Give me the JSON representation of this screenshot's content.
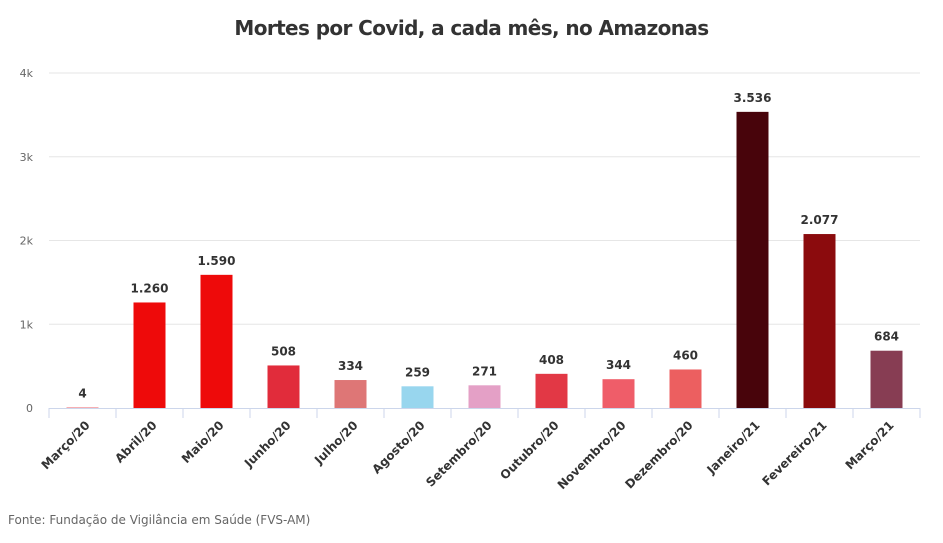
{
  "chart_data": {
    "type": "bar",
    "title": "Mortes por Covid, a cada mês, no Amazonas",
    "xlabel": "",
    "ylabel": "",
    "ylim": [
      0,
      4000
    ],
    "yticks": [
      0,
      1000,
      2000,
      3000,
      4000
    ],
    "ytick_labels": [
      "0",
      "1k",
      "2k",
      "3k",
      "4k"
    ],
    "grid": true,
    "legend": "none",
    "categories": [
      "Março/20",
      "Abril/20",
      "Maio/20",
      "Junho/20",
      "Julho/20",
      "Agosto/20",
      "Setembro/20",
      "Outubro/20",
      "Novembro/20",
      "Dezembro/20",
      "Janeiro/21",
      "Fevereiro/21",
      "Março/21"
    ],
    "values": [
      4,
      1260,
      1590,
      508,
      334,
      259,
      271,
      408,
      344,
      460,
      3536,
      2077,
      684
    ],
    "data_labels": [
      "4",
      "1.260",
      "1.590",
      "508",
      "334",
      "259",
      "271",
      "408",
      "344",
      "460",
      "3.536",
      "2.077",
      "684"
    ],
    "colors": [
      "#e8101a",
      "#ee0a0a",
      "#ee0a0a",
      "#e12c3b",
      "#de7676",
      "#98d6ee",
      "#e4a0c6",
      "#e23845",
      "#ef5d69",
      "#ec5f60",
      "#48040b",
      "#8b0b0d",
      "#873d53"
    ]
  },
  "source": "Fonte: Fundação de Vigilância em Saúde (FVS-AM)"
}
